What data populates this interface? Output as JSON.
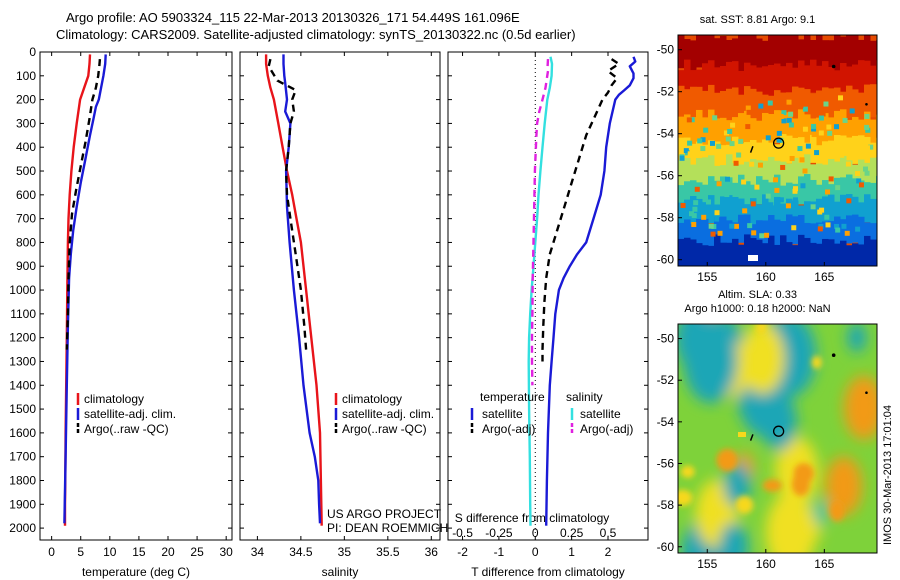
{
  "header": {
    "line1": "Argo profile: AO 5903324_115 22-Mar-2013 20130326_171 54.449S 161.096E",
    "line2": "Climatology: CARS2009. Satellite-adjusted climatology: synTS_20130322.nc (0.5d earlier)"
  },
  "colors": {
    "climatology": "#e8141a",
    "satellite": "#1a1ad6",
    "argo": "#000000",
    "sat_s": "#33e0e0",
    "argo_s": "#e020e0"
  },
  "credits": {
    "line1": "US ARGO PROJECT",
    "line2": "PI: DEAN ROEMMICH"
  },
  "stamp": "IMOS 30-Mar-2013 17:01:04",
  "chart_data": [
    {
      "type": "line",
      "xlabel": "temperature (deg C)",
      "xlim": [
        -2,
        31
      ],
      "ylim": [
        2050,
        0
      ],
      "xticks": [
        0,
        5,
        10,
        15,
        20,
        25,
        30
      ],
      "yticks": [
        0,
        100,
        200,
        300,
        400,
        500,
        600,
        700,
        800,
        900,
        1000,
        1100,
        1200,
        1300,
        1400,
        1500,
        1600,
        1700,
        1800,
        1900,
        2000
      ],
      "legend": [
        "climatology",
        "satellite-adj. clim.",
        "Argo(..raw -QC)"
      ],
      "series": [
        {
          "name": "climatology",
          "style": "solid",
          "x": [
            6.6,
            6.5,
            6.3,
            5.6,
            4.9,
            4.3,
            3.8,
            3.4,
            3.1,
            2.9,
            2.8,
            2.7,
            2.6,
            2.5,
            2.4,
            2.35,
            2.3,
            2.3
          ],
          "y": [
            10,
            50,
            100,
            150,
            200,
            300,
            400,
            500,
            600,
            700,
            800,
            1000,
            1200,
            1400,
            1600,
            1800,
            1900,
            1990
          ]
        },
        {
          "name": "satellite-adj. clim.",
          "style": "solid",
          "x": [
            9.3,
            9.2,
            8.9,
            8.5,
            8.1,
            7.6,
            7.2,
            6.6,
            5.8,
            5.0,
            4.3,
            3.7,
            3.3,
            3.0,
            2.9,
            2.8,
            2.6,
            2.4,
            2.2
          ],
          "y": [
            10,
            50,
            100,
            150,
            200,
            230,
            280,
            350,
            450,
            550,
            650,
            750,
            850,
            950,
            1050,
            1150,
            1400,
            1700,
            1980
          ]
        },
        {
          "name": "Argo(..raw -QC)",
          "style": "dashed",
          "x": [
            8.3,
            8.2,
            8.0,
            7.6,
            7.0,
            6.5,
            5.8,
            5.0,
            4.2,
            3.5,
            3.1,
            2.9,
            2.8,
            2.6
          ],
          "y": [
            30,
            60,
            100,
            150,
            200,
            280,
            380,
            480,
            580,
            680,
            800,
            950,
            1100,
            1250
          ]
        }
      ]
    },
    {
      "type": "line",
      "xlabel": "salinity",
      "xlim": [
        33.8,
        36.1
      ],
      "ylim": [
        2050,
        0
      ],
      "xticks": [
        34,
        34.5,
        35,
        35.5,
        36
      ],
      "legend": [
        "climatology",
        "satellite-adj. clim.",
        "Argo(..raw -QC)"
      ],
      "series": [
        {
          "name": "climatology",
          "style": "solid",
          "x": [
            34.1,
            34.1,
            34.12,
            34.15,
            34.19,
            34.24,
            34.29,
            34.34,
            34.4,
            34.45,
            34.5,
            34.56,
            34.62,
            34.68,
            34.72,
            34.74
          ],
          "y": [
            10,
            50,
            100,
            150,
            200,
            300,
            400,
            500,
            600,
            700,
            800,
            1000,
            1200,
            1400,
            1600,
            1990
          ]
        },
        {
          "name": "satellite-adj. clim.",
          "style": "solid",
          "x": [
            34.3,
            34.3,
            34.31,
            34.32,
            34.34,
            34.32,
            34.38,
            34.36,
            34.33,
            34.34,
            34.37,
            34.42,
            34.48,
            34.53,
            34.6,
            34.66,
            34.7,
            34.71,
            34.72
          ],
          "y": [
            10,
            50,
            100,
            130,
            200,
            250,
            300,
            400,
            500,
            650,
            800,
            1000,
            1200,
            1400,
            1600,
            1700,
            1800,
            1900,
            1980
          ]
        },
        {
          "name": "Argo(..raw -QC)",
          "style": "dashed",
          "x": [
            34.15,
            34.13,
            34.18,
            34.23,
            34.44,
            34.4,
            34.42,
            34.38,
            34.36,
            34.33,
            34.34,
            34.38,
            34.44,
            34.5,
            34.54,
            34.56
          ],
          "y": [
            30,
            60,
            90,
            120,
            160,
            200,
            250,
            300,
            400,
            500,
            600,
            700,
            850,
            1000,
            1150,
            1250
          ]
        }
      ]
    },
    {
      "type": "line",
      "xlabel": "T difference from climatology",
      "sublabel": "S difference from climatology",
      "xlim": [
        -2.4,
        3.1
      ],
      "ylim": [
        2050,
        0
      ],
      "xticks": [
        -2,
        -1,
        0,
        1,
        2
      ],
      "sticks": [
        "-0.5",
        "-0.25",
        "0",
        "0.25",
        "0.5"
      ],
      "legend_t": {
        "title": "temperature",
        "items": [
          "satellite",
          "Argo(-adj)"
        ]
      },
      "legend_s": {
        "title": "salinity",
        "items": [
          "satellite",
          "Argo(-adj)"
        ]
      },
      "series": [
        {
          "name": "satellite",
          "style": "solid",
          "x": [
            2.7,
            2.75,
            2.6,
            2.7,
            2.7,
            2.6,
            2.45,
            2.3,
            2.2,
            2.05,
            1.95,
            1.9,
            1.8,
            1.6,
            1.4,
            1.15,
            0.95,
            0.78,
            0.65,
            0.55,
            0.5,
            0.45,
            0.4,
            0.35,
            0.32,
            0.3
          ],
          "y": [
            20,
            40,
            60,
            90,
            110,
            140,
            160,
            180,
            200,
            300,
            400,
            500,
            600,
            700,
            800,
            850,
            900,
            950,
            1000,
            1100,
            1200,
            1300,
            1400,
            1600,
            1800,
            1990
          ]
        },
        {
          "name": "Argo(-adj)",
          "style": "dashed",
          "x": [
            2.1,
            2.3,
            2.0,
            2.25,
            2.1,
            2.0,
            1.85,
            1.7,
            1.4,
            1.2,
            1.0,
            0.8,
            0.6,
            0.4,
            0.3,
            0.25,
            0.22,
            0.2,
            0.2
          ],
          "y": [
            30,
            50,
            80,
            110,
            140,
            170,
            200,
            250,
            350,
            450,
            550,
            650,
            750,
            850,
            950,
            1050,
            1150,
            1250,
            1300
          ]
        },
        {
          "name": "salinity satellite",
          "style": "solid",
          "x": [
            0.42,
            0.46,
            0.45,
            0.4,
            0.33,
            0.26,
            0.2,
            0.14,
            0.09,
            0.05,
            0.0,
            -0.05,
            -0.1,
            -0.14,
            -0.17,
            -0.18,
            -0.17,
            -0.15,
            -0.14,
            -0.13
          ],
          "y": [
            20,
            50,
            100,
            150,
            200,
            300,
            400,
            500,
            600,
            700,
            800,
            900,
            1000,
            1100,
            1200,
            1300,
            1500,
            1700,
            1900,
            1990
          ]
        },
        {
          "name": "salinity Argo(-adj)",
          "style": "dashed",
          "x": [
            0.35,
            0.34,
            0.35,
            0.32,
            0.28,
            0.2,
            0.11,
            0.05,
            0.03,
            -0.01,
            -0.03,
            -0.05,
            -0.07,
            -0.08,
            -0.09,
            -0.09,
            -0.08
          ],
          "y": [
            30,
            60,
            80,
            110,
            150,
            200,
            250,
            300,
            350,
            500,
            650,
            800,
            950,
            1100,
            1200,
            1300,
            1400
          ]
        }
      ]
    },
    {
      "type": "heatmap",
      "title": "sat. SST: 8.81 Argo: 9.1",
      "xlim": [
        152.5,
        169.5
      ],
      "ylim": [
        -60.3,
        -49.3
      ],
      "xticks": [
        155,
        160,
        165
      ],
      "yticks": [
        -50,
        -52,
        -54,
        -56,
        -58,
        -60
      ],
      "argo_position": [
        161.096,
        -54.449
      ]
    },
    {
      "type": "heatmap",
      "title": "Altim. SLA: 0.33",
      "subtitle": "Argo h1000: 0.18 h2000: NaN",
      "xlim": [
        152.5,
        169.5
      ],
      "ylim": [
        -60.3,
        -49.3
      ],
      "xticks": [
        155,
        160,
        165
      ],
      "yticks": [
        -50,
        -52,
        -54,
        -56,
        -58,
        -60
      ],
      "argo_position": [
        161.096,
        -54.449
      ]
    }
  ]
}
